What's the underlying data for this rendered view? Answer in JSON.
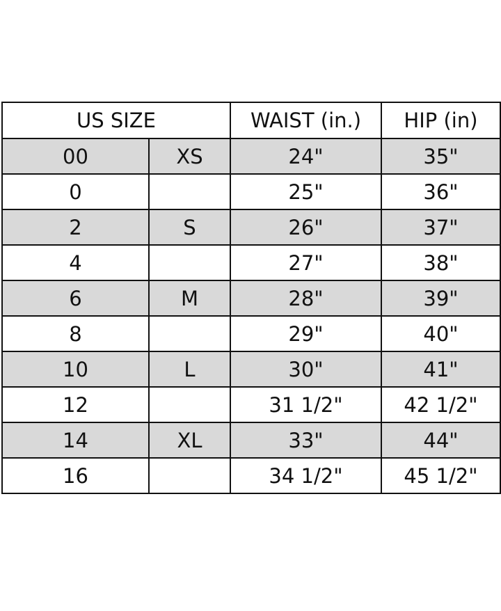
{
  "table": {
    "header": [
      "US SIZE",
      "WAIST (in.)",
      "HIP (in)"
    ],
    "rows": [
      [
        "00",
        "XS",
        "24\"",
        "35\""
      ],
      [
        "0",
        null,
        "25\"",
        "36\""
      ],
      [
        "2",
        "S",
        "26\"",
        "37\""
      ],
      [
        "4",
        null,
        "27\"",
        "38\""
      ],
      [
        "6",
        "M",
        "28\"",
        "39\""
      ],
      [
        "8",
        null,
        "29\"",
        "40\""
      ],
      [
        "10",
        "L",
        "30\"",
        "41\""
      ],
      [
        "12",
        null,
        "31 1/2\"",
        "42 1/2\""
      ],
      [
        "14",
        "XL",
        "33\"",
        "44\""
      ],
      [
        "16",
        null,
        "34 1/2\"",
        "45 1/2\""
      ]
    ]
  }
}
